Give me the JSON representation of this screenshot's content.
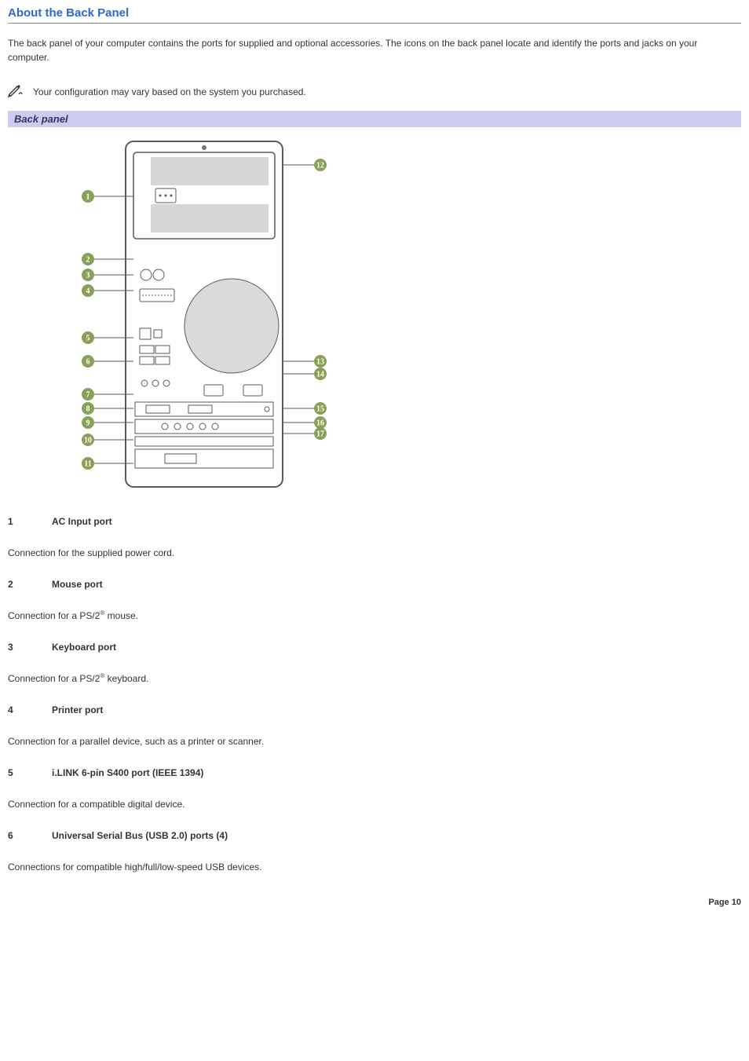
{
  "heading": "About the Back Panel",
  "intro": "The back panel of your computer contains the ports for supplied and optional accessories. The icons on the back panel locate and identify the ports and jacks on your computer.",
  "note": "Your configuration may vary based on the system you purchased.",
  "caption": "Back panel",
  "diagram": {
    "left_callouts": [
      1,
      2,
      3,
      4,
      5,
      6,
      7,
      8,
      9,
      10,
      11
    ],
    "right_callouts": [
      12,
      13,
      14,
      15,
      16,
      17
    ],
    "callout_bg": "#8aa05a",
    "callout_fg": "#ffffff",
    "chassis_stroke": "#5a5a5a",
    "chassis_fill": "#ffffff",
    "mesh_fill": "#bbbbbb"
  },
  "items": [
    {
      "num": "1",
      "title": "AC Input port",
      "desc_pre": "Connection for the supplied power cord.",
      "reg": "",
      "desc_post": ""
    },
    {
      "num": "2",
      "title": "Mouse port",
      "desc_pre": "Connection for a PS/2",
      "reg": "®",
      "desc_post": " mouse."
    },
    {
      "num": "3",
      "title": "Keyboard port",
      "desc_pre": "Connection for a PS/2",
      "reg": "®",
      "desc_post": " keyboard."
    },
    {
      "num": "4",
      "title": "Printer port",
      "desc_pre": "Connection for a parallel device, such as a printer or scanner.",
      "reg": "",
      "desc_post": ""
    },
    {
      "num": "5",
      "title": "i.LINK 6-pin S400 port (IEEE 1394)",
      "desc_pre": "Connection for a compatible digital device.",
      "reg": "",
      "desc_post": ""
    },
    {
      "num": "6",
      "title": "Universal Serial Bus (USB 2.0) ports (4)",
      "desc_pre": "Connections for compatible high/full/low-speed USB devices.",
      "reg": "",
      "desc_post": ""
    }
  ],
  "footer": "Page 10"
}
